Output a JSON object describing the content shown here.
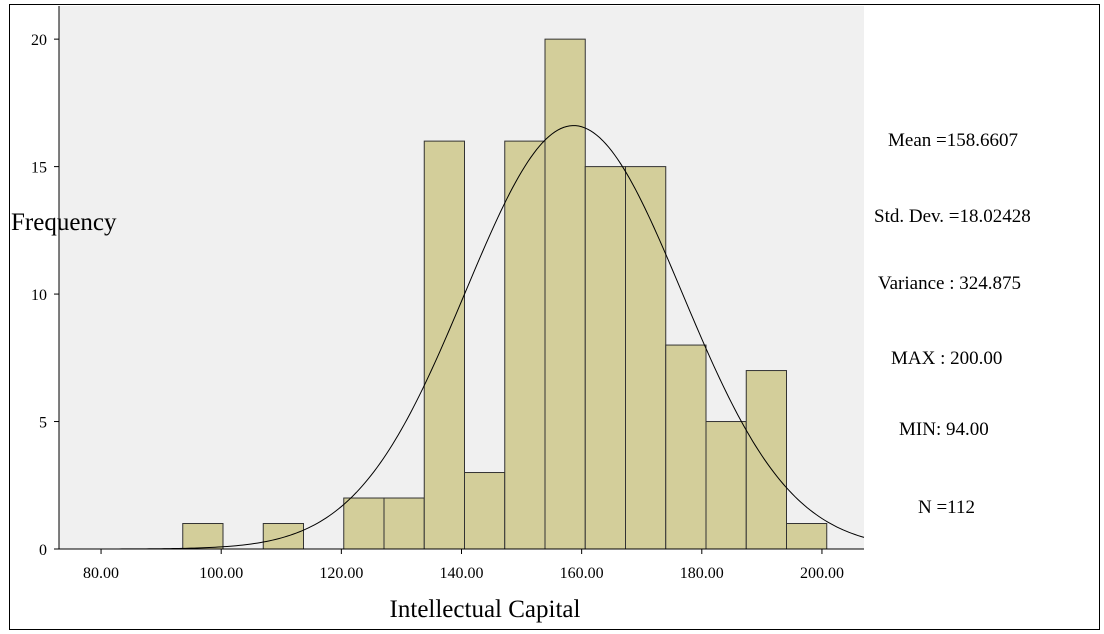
{
  "chart_data": {
    "type": "bar",
    "xlabel": "Intellectual Capital",
    "ylabel": "Frequency",
    "xlim": [
      73.0,
      207.0
    ],
    "ylim": [
      0,
      21.3
    ],
    "bin_width": 6.7,
    "x_ticks": [
      {
        "value": 80,
        "label": "80.00"
      },
      {
        "value": 100,
        "label": "100.00"
      },
      {
        "value": 120,
        "label": "120.00"
      },
      {
        "value": 140,
        "label": "140.00"
      },
      {
        "value": 160,
        "label": "160.00"
      },
      {
        "value": 180,
        "label": "180.00"
      },
      {
        "value": 200,
        "label": "200.00"
      }
    ],
    "y_ticks": [
      {
        "value": 0,
        "label": "0"
      },
      {
        "value": 5,
        "label": "5"
      },
      {
        "value": 10,
        "label": "10"
      },
      {
        "value": 15,
        "label": "15"
      },
      {
        "value": 20,
        "label": "20"
      }
    ],
    "bins": [
      {
        "start": 93.6,
        "value": 1
      },
      {
        "start": 107.0,
        "value": 1
      },
      {
        "start": 120.4,
        "value": 2
      },
      {
        "start": 127.1,
        "value": 2
      },
      {
        "start": 133.8,
        "value": 16
      },
      {
        "start": 140.5,
        "value": 3
      },
      {
        "start": 147.2,
        "value": 16
      },
      {
        "start": 153.9,
        "value": 20
      },
      {
        "start": 160.6,
        "value": 15
      },
      {
        "start": 167.3,
        "value": 15
      },
      {
        "start": 174.0,
        "value": 8
      },
      {
        "start": 180.7,
        "value": 5
      },
      {
        "start": 187.4,
        "value": 7
      },
      {
        "start": 194.1,
        "value": 1
      }
    ],
    "normal_curve": {
      "mean": 158.6607,
      "sd": 18.02428,
      "n": 112
    },
    "colors": {
      "plot_bg": "#f0f0f0",
      "bar_fill": "#d3ce9a",
      "bar_stroke": "#333333",
      "curve": "#000000"
    }
  },
  "stats": {
    "mean": "Mean =158.6607",
    "sd": "Std. Dev. =18.02428",
    "variance": "Variance : 324.875",
    "max": "MAX : 200.00",
    "min": "MIN: 94.00",
    "n": "N =112"
  }
}
